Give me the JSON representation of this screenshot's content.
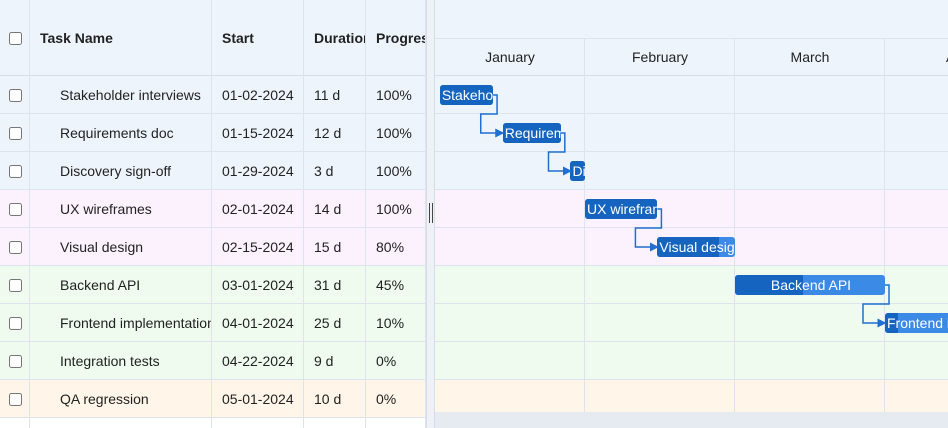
{
  "header": {
    "columns": [
      "Task Name",
      "Start",
      "Duration",
      "Progress"
    ]
  },
  "timeline": {
    "months": [
      "January",
      "February",
      "March",
      "April"
    ]
  },
  "tasks": [
    {
      "name": "Stakeholder interviews",
      "start": "01-02-2024",
      "duration": "11 d",
      "progress": "100%"
    },
    {
      "name": "Requirements doc",
      "start": "01-15-2024",
      "duration": "12 d",
      "progress": "100%"
    },
    {
      "name": "Discovery sign-off",
      "start": "01-29-2024",
      "duration": "3 d",
      "progress": "100%"
    },
    {
      "name": "UX wireframes",
      "start": "02-01-2024",
      "duration": "14 d",
      "progress": "100%"
    },
    {
      "name": "Visual design",
      "start": "02-15-2024",
      "duration": "15 d",
      "progress": "80%"
    },
    {
      "name": "Backend API",
      "start": "03-01-2024",
      "duration": "31 d",
      "progress": "45%"
    },
    {
      "name": "Frontend implementation",
      "start": "04-01-2024",
      "duration": "25 d",
      "progress": "10%"
    },
    {
      "name": "Integration tests",
      "start": "04-22-2024",
      "duration": "9 d",
      "progress": "0%"
    },
    {
      "name": "QA regression",
      "start": "05-01-2024",
      "duration": "10 d",
      "progress": "0%"
    }
  ]
}
